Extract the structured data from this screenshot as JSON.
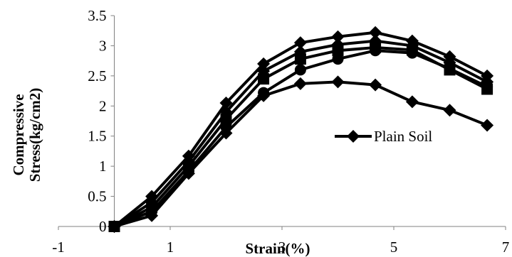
{
  "chart_data": {
    "type": "line",
    "xlabel": "Strain(%)",
    "ylabel": "Compressive Stress(kg/cm2)",
    "ylabel_lines": [
      "Compressive",
      "Stress(kg/cm2)"
    ],
    "xlim": [
      -1,
      7
    ],
    "ylim": [
      0,
      3.5
    ],
    "xticks": [
      "-1",
      "1",
      "3",
      "5",
      "7"
    ],
    "xtick_values": [
      -1,
      1,
      3,
      5,
      7
    ],
    "yticks": [
      "0",
      "0.5",
      "1",
      "1.5",
      "2",
      "2.5",
      "3",
      "3.5"
    ],
    "ytick_values": [
      0,
      0.5,
      1,
      1.5,
      2,
      2.5,
      3,
      3.5
    ],
    "legend_position": "right",
    "line_color": "#000000",
    "series": [
      {
        "name": "Plain Soil",
        "marker": "diamond",
        "x": [
          0,
          0.67,
          1.33,
          2.0,
          2.67,
          3.33,
          4.0,
          4.67,
          5.33,
          6.0,
          6.67
        ],
        "y": [
          0,
          0.18,
          0.88,
          1.55,
          2.17,
          2.37,
          2.4,
          2.35,
          2.07,
          1.93,
          1.68
        ]
      },
      {
        "marker": "circle",
        "x": [
          0,
          0.67,
          1.33,
          2.0,
          2.67,
          3.33,
          4.0,
          4.67,
          5.33,
          6.0,
          6.67
        ],
        "y": [
          0,
          0.25,
          0.92,
          1.65,
          2.22,
          2.6,
          2.78,
          2.92,
          2.88,
          2.62,
          2.32
        ]
      },
      {
        "marker": "square",
        "x": [
          0,
          0.67,
          1.33,
          2.0,
          2.67,
          3.33,
          4.0,
          4.67,
          5.33,
          6.0,
          6.67
        ],
        "y": [
          0,
          0.32,
          1.0,
          1.78,
          2.45,
          2.78,
          2.92,
          2.97,
          2.93,
          2.6,
          2.28
        ]
      },
      {
        "marker": "diamond",
        "x": [
          0,
          0.67,
          1.33,
          2.0,
          2.67,
          3.33,
          4.0,
          4.67,
          5.33,
          6.0,
          6.67
        ],
        "y": [
          0,
          0.4,
          1.08,
          1.9,
          2.58,
          2.9,
          3.02,
          3.08,
          3.0,
          2.72,
          2.4
        ]
      },
      {
        "marker": "diamond",
        "x": [
          0,
          0.67,
          1.33,
          2.0,
          2.67,
          3.33,
          4.0,
          4.67,
          5.33,
          6.0,
          6.67
        ],
        "y": [
          0,
          0.5,
          1.17,
          2.05,
          2.7,
          3.05,
          3.15,
          3.22,
          3.08,
          2.82,
          2.5
        ]
      }
    ]
  }
}
